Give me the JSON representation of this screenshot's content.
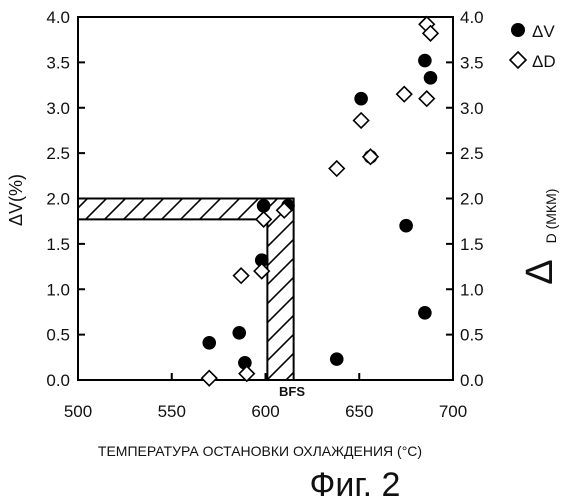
{
  "chart_data": {
    "type": "scatter",
    "xlabel": "ТЕМПЕРАТУРА ОСТАНОВКИ ОХЛАЖДЕНИЯ (°C)",
    "ylabel_left": "ΔV(%)",
    "ylabel_right_main": "Δ",
    "ylabel_right_sub": "D (МКМ)",
    "caption": "Фиг. 2",
    "xlim": [
      500,
      700
    ],
    "ylim": [
      0,
      4.0
    ],
    "x_ticks": [
      500,
      550,
      600,
      650,
      700
    ],
    "y_ticks": [
      0.0,
      0.5,
      1.0,
      1.5,
      2.0,
      2.5,
      3.0,
      3.5,
      4.0
    ],
    "y_tick_labels": [
      "0.0",
      "0.5",
      "1.0",
      "1.5",
      "2.0",
      "2.5",
      "3.0",
      "3.5",
      "4.0"
    ],
    "grid": false,
    "legend_position": "top-right-outside",
    "annotation": {
      "text": "BFS",
      "x": 615,
      "y": 0
    },
    "hatched_region": {
      "x_start": 500,
      "x_end": 615,
      "y_top": 2.0,
      "band_inner_x": 601,
      "band_inner_y": 1.77
    },
    "series": [
      {
        "name": "ΔV",
        "marker": "filled-circle",
        "color": "#000000",
        "points": [
          {
            "x": 570,
            "y": 0.41
          },
          {
            "x": 586,
            "y": 0.52
          },
          {
            "x": 589,
            "y": 0.19
          },
          {
            "x": 598,
            "y": 1.32
          },
          {
            "x": 599,
            "y": 1.92
          },
          {
            "x": 612,
            "y": 1.92
          },
          {
            "x": 638,
            "y": 0.23
          },
          {
            "x": 651,
            "y": 3.1
          },
          {
            "x": 656,
            "y": 2.46
          },
          {
            "x": 675,
            "y": 1.7
          },
          {
            "x": 685,
            "y": 0.74
          },
          {
            "x": 685,
            "y": 3.52
          },
          {
            "x": 688,
            "y": 3.33
          }
        ]
      },
      {
        "name": "ΔD",
        "marker": "open-diamond",
        "color": "#000000",
        "points": [
          {
            "x": 570,
            "y": 0.02
          },
          {
            "x": 587,
            "y": 1.15
          },
          {
            "x": 590,
            "y": 0.07
          },
          {
            "x": 598,
            "y": 1.2
          },
          {
            "x": 599,
            "y": 1.77
          },
          {
            "x": 610,
            "y": 1.87
          },
          {
            "x": 638,
            "y": 2.33
          },
          {
            "x": 651,
            "y": 2.86
          },
          {
            "x": 656,
            "y": 2.46
          },
          {
            "x": 674,
            "y": 3.15
          },
          {
            "x": 686,
            "y": 3.1
          },
          {
            "x": 686,
            "y": 3.92
          },
          {
            "x": 688,
            "y": 3.82
          }
        ]
      }
    ]
  }
}
